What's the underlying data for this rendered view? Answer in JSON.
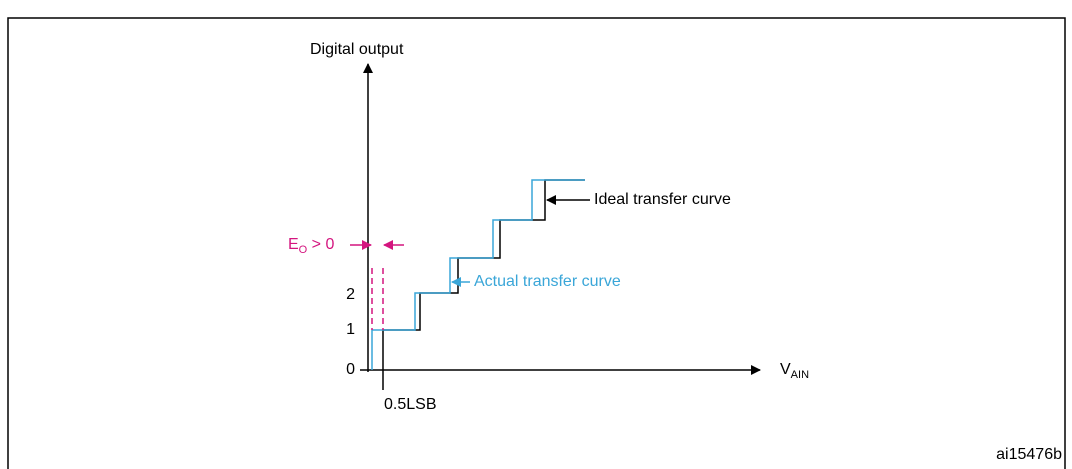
{
  "diagram": {
    "axis_y_label": "Digital output",
    "axis_x_label": {
      "main": "V",
      "sub": "AIN"
    },
    "ticks": [
      "0",
      "1",
      "2"
    ],
    "offset_label": {
      "main": "E",
      "sub": "O",
      "rest": " > 0"
    },
    "lsb_label": "0.5LSB",
    "ideal_label": "Ideal transfer curve",
    "actual_label": "Actual transfer curve",
    "figure_id": "ai15476b"
  }
}
